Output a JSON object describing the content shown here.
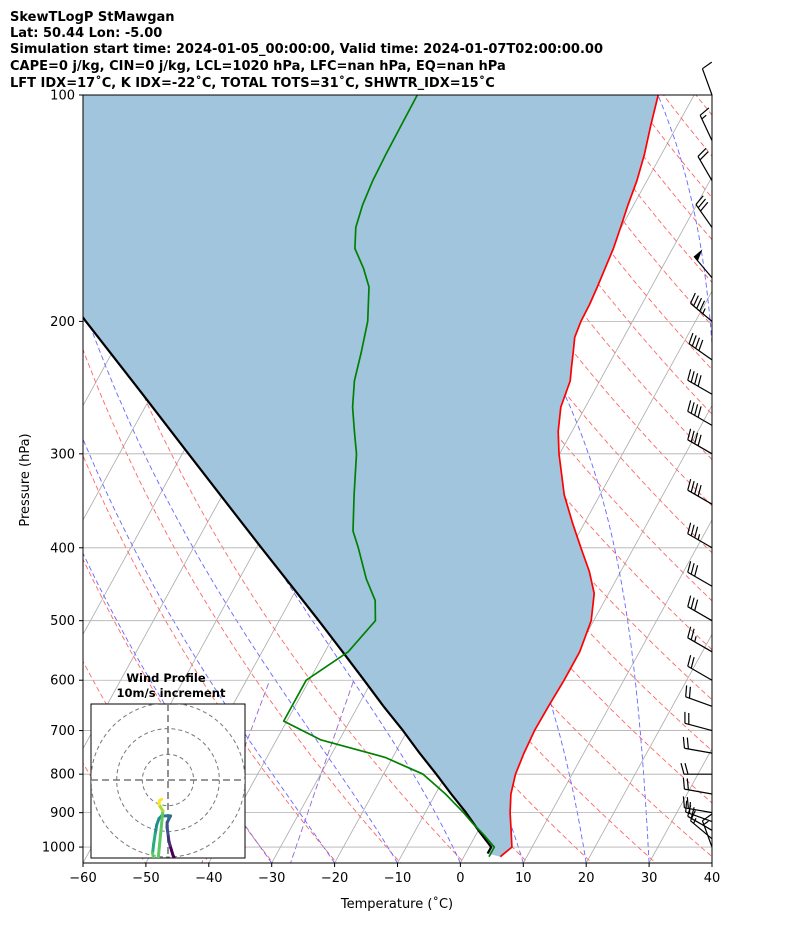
{
  "header": {
    "lines": [
      "SkewTLogP StMawgan",
      "Lat: 50.44   Lon: -5.00",
      "Simulation start time: 2024-01-05_00:00:00, Valid time: 2024-01-07T02:00:00.00",
      "CAPE=0 j/kg, CIN=0 j/kg, LCL=1020 hPa, LFC=nan hPa, EQ=nan hPa",
      "LFT IDX=17˚C, K IDX=-22˚C, TOTAL TOTS=31˚C, SHWTR_IDX=15˚C"
    ]
  },
  "colors": {
    "temperature": "#ff0000",
    "dewpoint": "#008000",
    "parcel": "#000000",
    "fill": "#a2c5de",
    "dry_adiabats": "#ff6666",
    "moist_adiabats": "#6666ff",
    "mixing_ratio": "#9966cc",
    "isotherms": "#aaaaaa",
    "grid": "#b0b0b0"
  },
  "chart_data": {
    "type": "line",
    "xlabel": "Temperature (˚C)",
    "ylabel": "Pressure (hPa)",
    "xlim": [
      -60,
      40
    ],
    "ylim": [
      1050,
      100
    ],
    "x_ticks": [
      -60,
      -50,
      -40,
      -30,
      -20,
      -10,
      0,
      10,
      20,
      30,
      40
    ],
    "y_ticks": [
      1000,
      900,
      800,
      700,
      600,
      500,
      400,
      300,
      200,
      100
    ],
    "log_pressure": true,
    "grid": true,
    "series": [
      {
        "key": "temperature",
        "points": [
          [
            1030,
            5.8
          ],
          [
            1000,
            6.8
          ],
          [
            950,
            5.2
          ],
          [
            900,
            3.5
          ],
          [
            850,
            2.0
          ],
          [
            800,
            1.0
          ],
          [
            750,
            0.5
          ],
          [
            700,
            0.2
          ],
          [
            650,
            0.3
          ],
          [
            600,
            0.5
          ],
          [
            550,
            0.5
          ],
          [
            500,
            -0.4
          ],
          [
            460,
            -2.3
          ],
          [
            430,
            -5.0
          ],
          [
            400,
            -8.4
          ],
          [
            370,
            -12.0
          ],
          [
            340,
            -15.7
          ],
          [
            300,
            -20.1
          ],
          [
            280,
            -22.2
          ],
          [
            260,
            -23.9
          ],
          [
            240,
            -24.7
          ],
          [
            230,
            -25.7
          ],
          [
            220,
            -26.7
          ],
          [
            210,
            -27.8
          ],
          [
            200,
            -28.2
          ],
          [
            190,
            -28.3
          ],
          [
            180,
            -28.6
          ],
          [
            170,
            -29.0
          ],
          [
            160,
            -29.4
          ],
          [
            150,
            -30.1
          ],
          [
            140,
            -30.9
          ],
          [
            130,
            -31.6
          ],
          [
            120,
            -32.7
          ],
          [
            110,
            -34.2
          ],
          [
            100,
            -35.7
          ]
        ]
      },
      {
        "key": "dewpoint",
        "points": [
          [
            1030,
            4.0
          ],
          [
            1000,
            4.0
          ],
          [
            960,
            1.0
          ],
          [
            930,
            -1.5
          ],
          [
            900,
            -3.9
          ],
          [
            850,
            -8.4
          ],
          [
            800,
            -13.7
          ],
          [
            760,
            -21.2
          ],
          [
            720,
            -33.0
          ],
          [
            680,
            -40.5
          ],
          [
            650,
            -40.5
          ],
          [
            600,
            -40.5
          ],
          [
            550,
            -36.3
          ],
          [
            500,
            -34.7
          ],
          [
            470,
            -36.5
          ],
          [
            440,
            -39.8
          ],
          [
            400,
            -43.8
          ],
          [
            380,
            -46.1
          ],
          [
            340,
            -49.1
          ],
          [
            300,
            -52.3
          ],
          [
            280,
            -54.6
          ],
          [
            260,
            -57.0
          ],
          [
            240,
            -59.0
          ],
          [
            220,
            -60.4
          ],
          [
            200,
            -62.1
          ],
          [
            180,
            -64.9
          ],
          [
            170,
            -67.4
          ],
          [
            160,
            -70.5
          ],
          [
            150,
            -72.2
          ],
          [
            140,
            -73.1
          ],
          [
            130,
            -73.6
          ],
          [
            120,
            -73.8
          ],
          [
            110,
            -73.9
          ],
          [
            100,
            -74.0
          ]
        ]
      },
      {
        "key": "parcel",
        "points": [
          [
            1020,
            3.5
          ],
          [
            1000,
            3.5
          ],
          [
            950,
            0.0
          ],
          [
            900,
            -3.5
          ],
          [
            850,
            -7.5
          ],
          [
            800,
            -11.6
          ],
          [
            750,
            -16.1
          ],
          [
            700,
            -20.7
          ],
          [
            650,
            -25.9
          ],
          [
            600,
            -31.3
          ],
          [
            550,
            -37.2
          ],
          [
            500,
            -43.7
          ],
          [
            450,
            -51.0
          ],
          [
            400,
            -59.2
          ],
          [
            350,
            -68.4
          ],
          [
            300,
            -79.0
          ],
          [
            250,
            -91.5
          ],
          [
            200,
            -106.9
          ],
          [
            150,
            -126.5
          ],
          [
            100,
            -154.2
          ]
        ]
      }
    ],
    "wind_barbs": {
      "units": "knots",
      "data": [
        [
          1000,
          340,
          14
        ],
        [
          975,
          310,
          16
        ],
        [
          950,
          300,
          18
        ],
        [
          925,
          290,
          20
        ],
        [
          900,
          280,
          20
        ],
        [
          850,
          280,
          20
        ],
        [
          800,
          270,
          22
        ],
        [
          750,
          280,
          20
        ],
        [
          700,
          285,
          18
        ],
        [
          650,
          290,
          18
        ],
        [
          600,
          300,
          22
        ],
        [
          550,
          300,
          26
        ],
        [
          500,
          300,
          28
        ],
        [
          450,
          300,
          32
        ],
        [
          400,
          300,
          34
        ],
        [
          350,
          300,
          38
        ],
        [
          300,
          300,
          38
        ],
        [
          275,
          300,
          38
        ],
        [
          250,
          300,
          38
        ],
        [
          225,
          305,
          40
        ],
        [
          200,
          310,
          45
        ],
        [
          175,
          320,
          50
        ],
        [
          150,
          325,
          30
        ],
        [
          130,
          330,
          20
        ],
        [
          115,
          335,
          15
        ],
        [
          100,
          340,
          12
        ]
      ]
    },
    "hodograph": {
      "title": "Wind Profile",
      "subtitle": "10m/s increment",
      "rings_ms": [
        10,
        20,
        30
      ],
      "range_ms": 30,
      "points_uv": [
        [
          2.6,
          -30.6
        ],
        [
          2.0,
          -29.5
        ],
        [
          1.4,
          -27.5
        ],
        [
          0.8,
          -25.5
        ],
        [
          0.3,
          -23.5
        ],
        [
          0.0,
          -21.0
        ],
        [
          -0.4,
          -18.3
        ],
        [
          -0.3,
          -16.5
        ],
        [
          0.5,
          -14.9
        ],
        [
          1.0,
          -14.0
        ],
        [
          -2.5,
          -14.0
        ],
        [
          -3.5,
          -15.0
        ],
        [
          -4.4,
          -17.5
        ],
        [
          -5.0,
          -21.0
        ],
        [
          -5.6,
          -25.0
        ],
        [
          -6.0,
          -28.5
        ],
        [
          -5.5,
          -31.2
        ],
        [
          -4.0,
          -32.5
        ],
        [
          -2.0,
          -12.0
        ],
        [
          -2.9,
          -10.6
        ],
        [
          -3.5,
          -9.5
        ],
        [
          -3.3,
          -8.0
        ],
        [
          -2.5,
          -7.5
        ]
      ]
    }
  }
}
